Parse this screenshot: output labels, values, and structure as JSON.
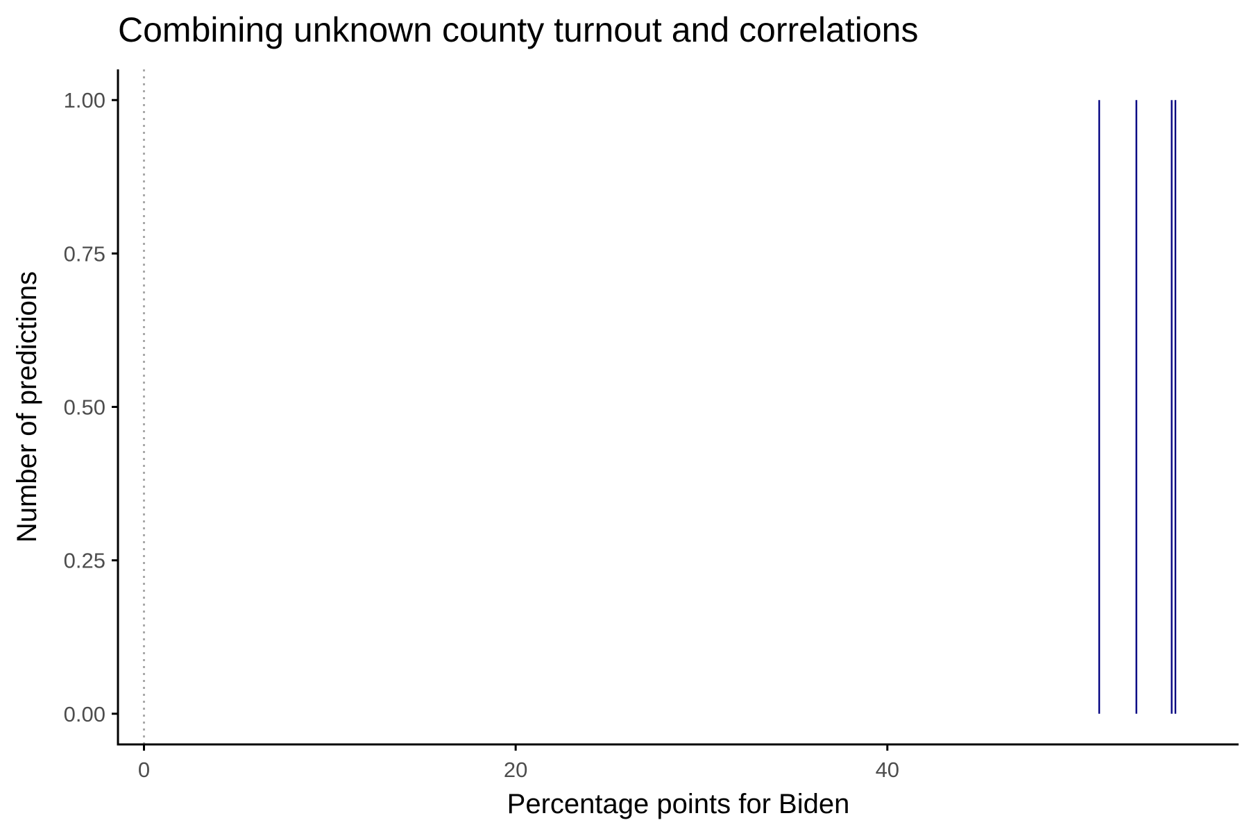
{
  "chart_data": {
    "type": "bar",
    "title": "Combining unknown county turnout and correlations",
    "xlabel": "Percentage points for Biden",
    "ylabel": "Number of predictions",
    "xlim": [
      -1.4,
      58.9
    ],
    "ylim": [
      -0.05,
      1.05
    ],
    "x_ticks": [
      0,
      20,
      40
    ],
    "x_tick_labels": [
      "0",
      "20",
      "40"
    ],
    "y_ticks": [
      0,
      0.25,
      0.5,
      0.75,
      1.0
    ],
    "y_tick_labels": [
      "0.00",
      "0.25",
      "0.50",
      "0.75",
      "1.00"
    ],
    "reference_line": {
      "x": 0,
      "style": "dotted",
      "color": "#aaaaaa"
    },
    "bar_color": "#000080",
    "grid": false,
    "legend": "none",
    "series": [
      {
        "x": [
          51.4,
          53.4,
          55.3,
          55.5
        ],
        "values": [
          1,
          1,
          1,
          1
        ]
      }
    ]
  }
}
